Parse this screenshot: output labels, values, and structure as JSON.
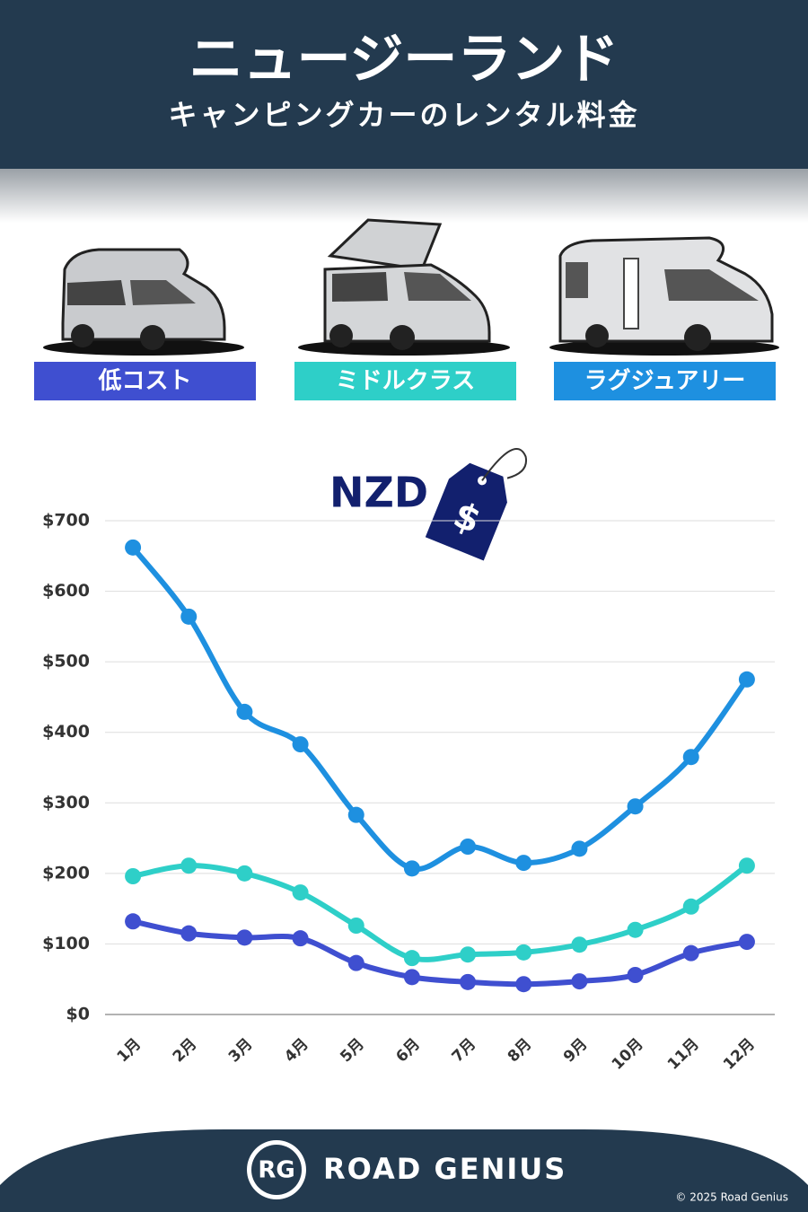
{
  "header": {
    "title": "ニュージーランド",
    "subtitle": "キャンピングカーのレンタル料金"
  },
  "chart_data": {
    "type": "line",
    "annotation": "NZD",
    "price_tag_symbol": "$",
    "categories": [
      "1月",
      "2月",
      "3月",
      "4月",
      "5月",
      "6月",
      "7月",
      "8月",
      "9月",
      "10月",
      "11月",
      "12月"
    ],
    "series": [
      {
        "name": "低コスト",
        "color": "#3f4fd0",
        "values": [
          132,
          115,
          109,
          108,
          73,
          53,
          46,
          43,
          47,
          56,
          87,
          103
        ]
      },
      {
        "name": "ミドルクラス",
        "color": "#2ecfc8",
        "values": [
          196,
          211,
          200,
          173,
          126,
          80,
          85,
          88,
          99,
          120,
          153,
          211
        ]
      },
      {
        "name": "ラグジュアリー",
        "color": "#1e90e0",
        "values": [
          662,
          564,
          429,
          383,
          283,
          207,
          238,
          215,
          235,
          295,
          365,
          475
        ]
      }
    ],
    "ylim": [
      0,
      700
    ],
    "yticks": [
      {
        "value": 0,
        "label": "$0"
      },
      {
        "value": 100,
        "label": "$100"
      },
      {
        "value": 200,
        "label": "$200"
      },
      {
        "value": 300,
        "label": "$300"
      },
      {
        "value": 400,
        "label": "$400"
      },
      {
        "value": 500,
        "label": "$500"
      },
      {
        "value": 600,
        "label": "$600"
      },
      {
        "value": 700,
        "label": "$700"
      }
    ],
    "grid": true
  },
  "footer": {
    "logo": "RG",
    "brand": "ROAD GENIUS",
    "copyright": "© 2025 Road Genius"
  }
}
